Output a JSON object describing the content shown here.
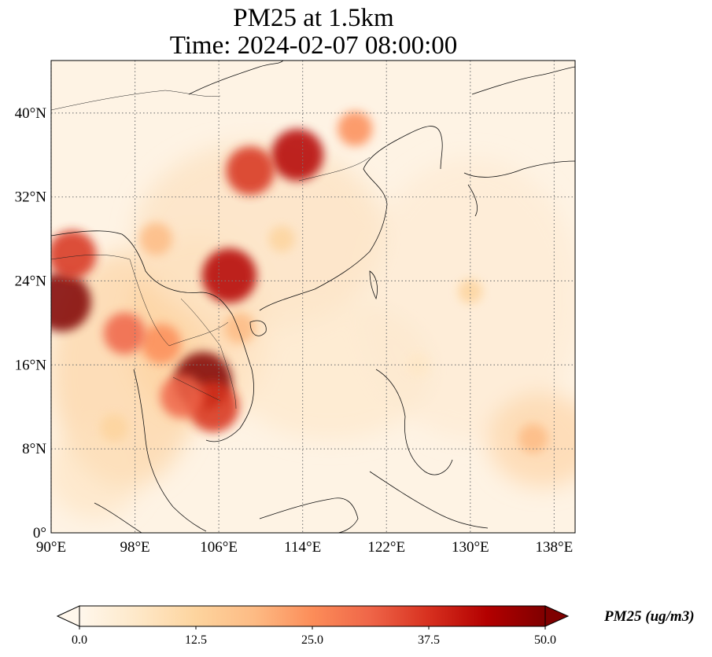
{
  "title": {
    "line1": "PM25 at 1.5km",
    "line2": "Time: 2024-02-07 08:00:00"
  },
  "map": {
    "lon_range": [
      90,
      140
    ],
    "lat_range": [
      0,
      45
    ],
    "projection": "PlateCarree",
    "gridlines": "dotted",
    "lat_ticks": [
      {
        "value": 0,
        "label": "0°"
      },
      {
        "value": 8,
        "label": "8°N"
      },
      {
        "value": 16,
        "label": "16°N"
      },
      {
        "value": 24,
        "label": "24°N"
      },
      {
        "value": 32,
        "label": "32°N"
      },
      {
        "value": 40,
        "label": "40°N"
      }
    ],
    "lon_ticks": [
      {
        "value": 90,
        "label": "90°E"
      },
      {
        "value": 98,
        "label": "98°E"
      },
      {
        "value": 106,
        "label": "106°E"
      },
      {
        "value": 114,
        "label": "114°E"
      },
      {
        "value": 122,
        "label": "122°E"
      },
      {
        "value": 130,
        "label": "130°E"
      },
      {
        "value": 138,
        "label": "138°E"
      }
    ],
    "variable": "PM25",
    "plumes": [
      {
        "lon": 104.5,
        "lat": 14.5,
        "value": 48
      },
      {
        "lon": 105.5,
        "lat": 12.0,
        "value": 40
      },
      {
        "lon": 102.5,
        "lat": 13.0,
        "value": 32
      },
      {
        "lon": 100.5,
        "lat": 18.0,
        "value": 28
      },
      {
        "lon": 91.0,
        "lat": 22.0,
        "value": 50
      },
      {
        "lon": 92.0,
        "lat": 26.5,
        "value": 38
      },
      {
        "lon": 97.0,
        "lat": 19.0,
        "value": 30
      },
      {
        "lon": 107.0,
        "lat": 24.5,
        "value": 45
      },
      {
        "lon": 113.5,
        "lat": 36.0,
        "value": 42
      },
      {
        "lon": 109.0,
        "lat": 34.5,
        "value": 38
      },
      {
        "lon": 119.0,
        "lat": 38.5,
        "value": 22
      },
      {
        "lon": 100.0,
        "lat": 28.0,
        "value": 20
      },
      {
        "lon": 108.0,
        "lat": 19.5,
        "value": 18
      },
      {
        "lon": 96.0,
        "lat": 10.0,
        "value": 14
      },
      {
        "lon": 112.0,
        "lat": 28.0,
        "value": 12
      },
      {
        "lon": 136.0,
        "lat": 9.0,
        "value": 16
      },
      {
        "lon": 130.0,
        "lat": 23.0,
        "value": 10
      },
      {
        "lon": 125.0,
        "lat": 16.0,
        "value": 9
      }
    ]
  },
  "colorbar": {
    "colormap": "OrRd",
    "range": [
      0.0,
      50.0
    ],
    "extend": "both",
    "tick_labels": [
      "0.0",
      "12.5",
      "25.0",
      "37.5",
      "50.0"
    ],
    "label": "PM25 (ug/m3)",
    "colors": [
      "#fff7ec",
      "#fee8c8",
      "#fdd49e",
      "#fdbb84",
      "#fc8d59",
      "#ef6548",
      "#d7301f",
      "#b30000",
      "#7f0000"
    ]
  }
}
